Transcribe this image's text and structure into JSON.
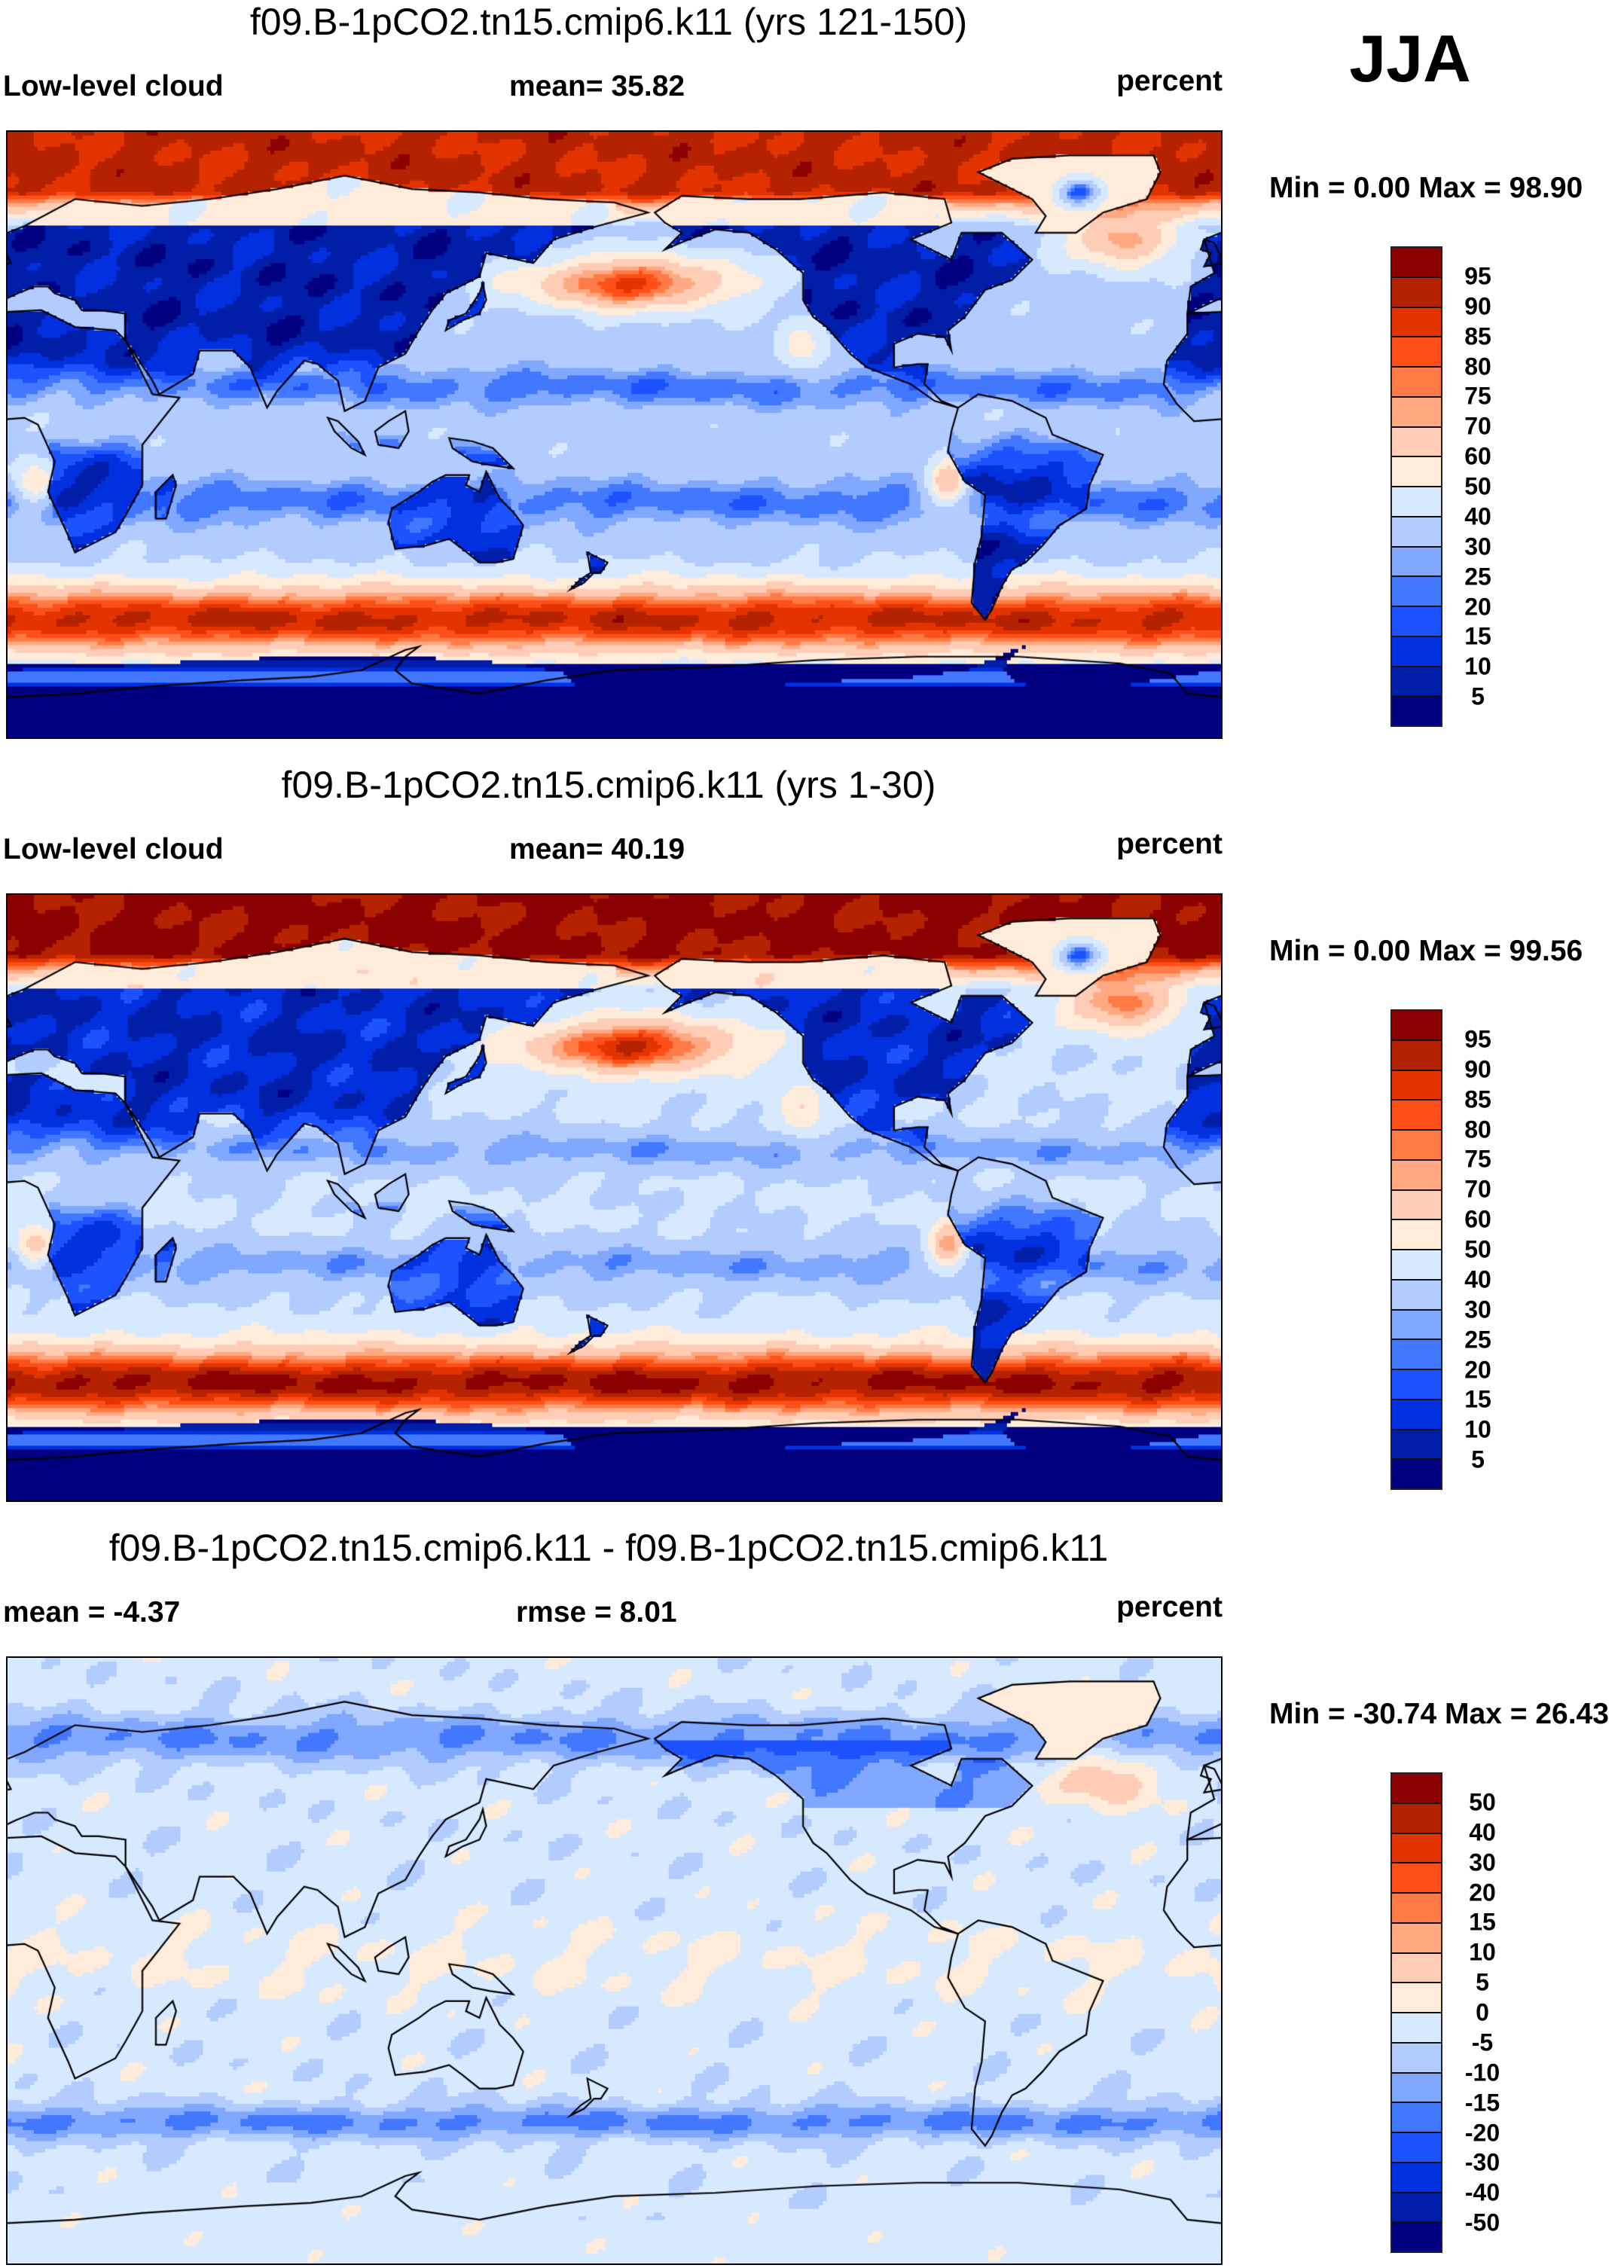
{
  "season": "JJA",
  "colors": [
    "#000080",
    "#001ea8",
    "#0030e0",
    "#1c52ff",
    "#4278ff",
    "#80a8ff",
    "#b3ccff",
    "#d6e9ff",
    "#ffebd9",
    "#ffccb5",
    "#ffa882",
    "#ff7a45",
    "#ff4f18",
    "#e33400",
    "#b52200",
    "#8b0000"
  ],
  "panels": [
    {
      "title": "f09.B-1pCO2.tn15.cmip6.k11 (yrs 121-150)",
      "left_label": "Low-level cloud",
      "center_label": "mean=  35.82",
      "right_label": "percent",
      "minmax": "Min =    0.00 Max =  98.90",
      "levels": [
        "5",
        "10",
        "15",
        "20",
        "25",
        "30",
        "40",
        "50",
        "60",
        "70",
        "75",
        "80",
        "85",
        "90",
        "95"
      ]
    },
    {
      "title": "f09.B-1pCO2.tn15.cmip6.k11 (yrs 1-30)",
      "left_label": "Low-level cloud",
      "center_label": "mean=  40.19",
      "right_label": "percent",
      "minmax": "Min =    0.00 Max =  99.56",
      "levels": [
        "5",
        "10",
        "15",
        "20",
        "25",
        "30",
        "40",
        "50",
        "60",
        "70",
        "75",
        "80",
        "85",
        "90",
        "95"
      ]
    },
    {
      "title": "f09.B-1pCO2.tn15.cmip6.k11 - f09.B-1pCO2.tn15.cmip6.k11",
      "left_label": "mean =  -4.37",
      "center_label": "rmse =    8.01",
      "right_label": "percent",
      "minmax": "Min = -30.74 Max =  26.43",
      "levels": [
        "-50",
        "-40",
        "-30",
        "-20",
        "-15",
        "-10",
        "-5",
        "0",
        "5",
        "10",
        "15",
        "20",
        "30",
        "40",
        "50"
      ]
    }
  ]
}
